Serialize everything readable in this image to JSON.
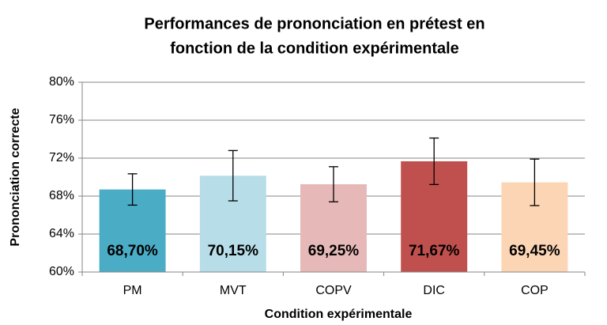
{
  "chart_data": {
    "type": "bar",
    "title": [
      "Performances de prononciation en prétest en",
      "fonction de la condition expérimentale"
    ],
    "x_label": "Condition expérimentale",
    "y_label": "Prononciation correcte",
    "categories": [
      "PM",
      "MVT",
      "COPV",
      "DIC",
      "COP"
    ],
    "values": [
      68.7,
      70.15,
      69.25,
      71.67,
      69.45
    ],
    "value_labels": [
      "68,70%",
      "70,15%",
      "69,25%",
      "71,67%",
      "69,45%"
    ],
    "errors": [
      1.65,
      2.65,
      1.85,
      2.45,
      2.45
    ],
    "colors": [
      "#4bacc6",
      "#b7dde8",
      "#e6b9b8",
      "#c0504d",
      "#fcd5b5"
    ],
    "ylim": [
      60,
      80
    ],
    "yticks": [
      {
        "value": 60,
        "label": "60%"
      },
      {
        "value": 64,
        "label": "64%"
      },
      {
        "value": 68,
        "label": "68%"
      },
      {
        "value": 72,
        "label": "72%"
      },
      {
        "value": 76,
        "label": "76%"
      },
      {
        "value": 80,
        "label": "80%"
      }
    ],
    "grid": true
  }
}
